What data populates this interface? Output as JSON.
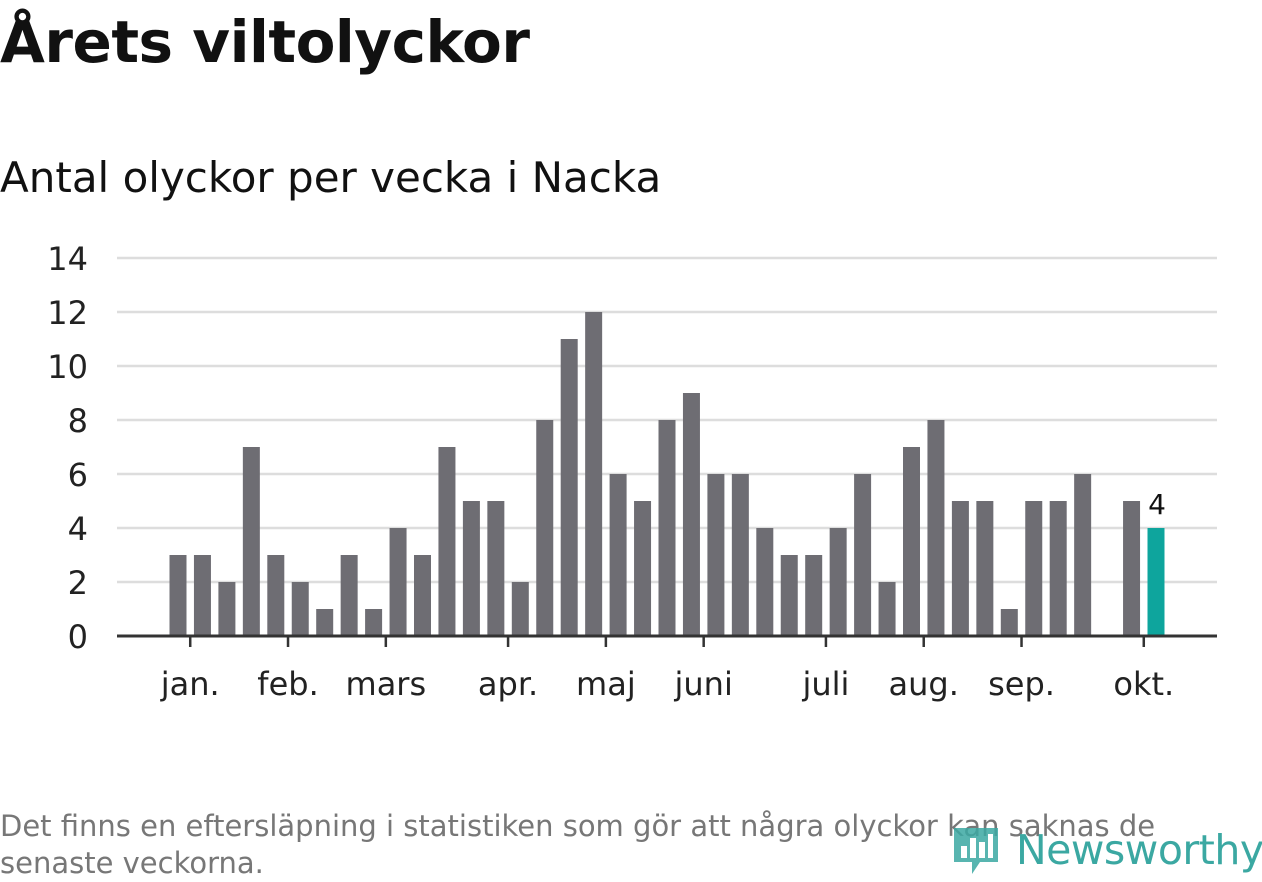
{
  "header": {
    "title": "Årets viltolyckor",
    "subtitle": "Antal olyckor per vecka i Nacka"
  },
  "chart_data": {
    "type": "bar",
    "title": "Årets viltolyckor",
    "subtitle": "Antal olyckor per vecka i Nacka",
    "xlabel": "",
    "ylabel": "",
    "ylim": [
      0,
      14
    ],
    "yticks": [
      "0",
      "2",
      "4",
      "6",
      "8",
      "10",
      "12",
      "14"
    ],
    "grid": true,
    "values": [
      3,
      3,
      2,
      7,
      3,
      2,
      1,
      3,
      1,
      4,
      3,
      7,
      5,
      5,
      2,
      8,
      11,
      12,
      6,
      5,
      8,
      9,
      6,
      6,
      4,
      3,
      3,
      4,
      6,
      2,
      7,
      8,
      5,
      5,
      1,
      5,
      5,
      6,
      0,
      5,
      4
    ],
    "highlight_index": 40,
    "highlight_label": "4",
    "month_labels": [
      {
        "label": "jan.",
        "week": 0.5
      },
      {
        "label": "feb.",
        "week": 4.5
      },
      {
        "label": "mars",
        "week": 8.5
      },
      {
        "label": "apr.",
        "week": 13.5
      },
      {
        "label": "maj",
        "week": 17.5
      },
      {
        "label": "juni",
        "week": 21.5
      },
      {
        "label": "juli",
        "week": 26.5
      },
      {
        "label": "aug.",
        "week": 30.5
      },
      {
        "label": "sep.",
        "week": 34.5
      },
      {
        "label": "okt.",
        "week": 39.5
      }
    ],
    "colors": {
      "bar": "#6e6d73",
      "highlight": "#0ea59d",
      "grid": "#dddddd",
      "axis": "#333333"
    }
  },
  "footer": {
    "note": "Det finns en eftersläpning i statistiken som gör att några olyckor kan saknas de senaste veckorna.",
    "brand": "Newsworthy"
  }
}
